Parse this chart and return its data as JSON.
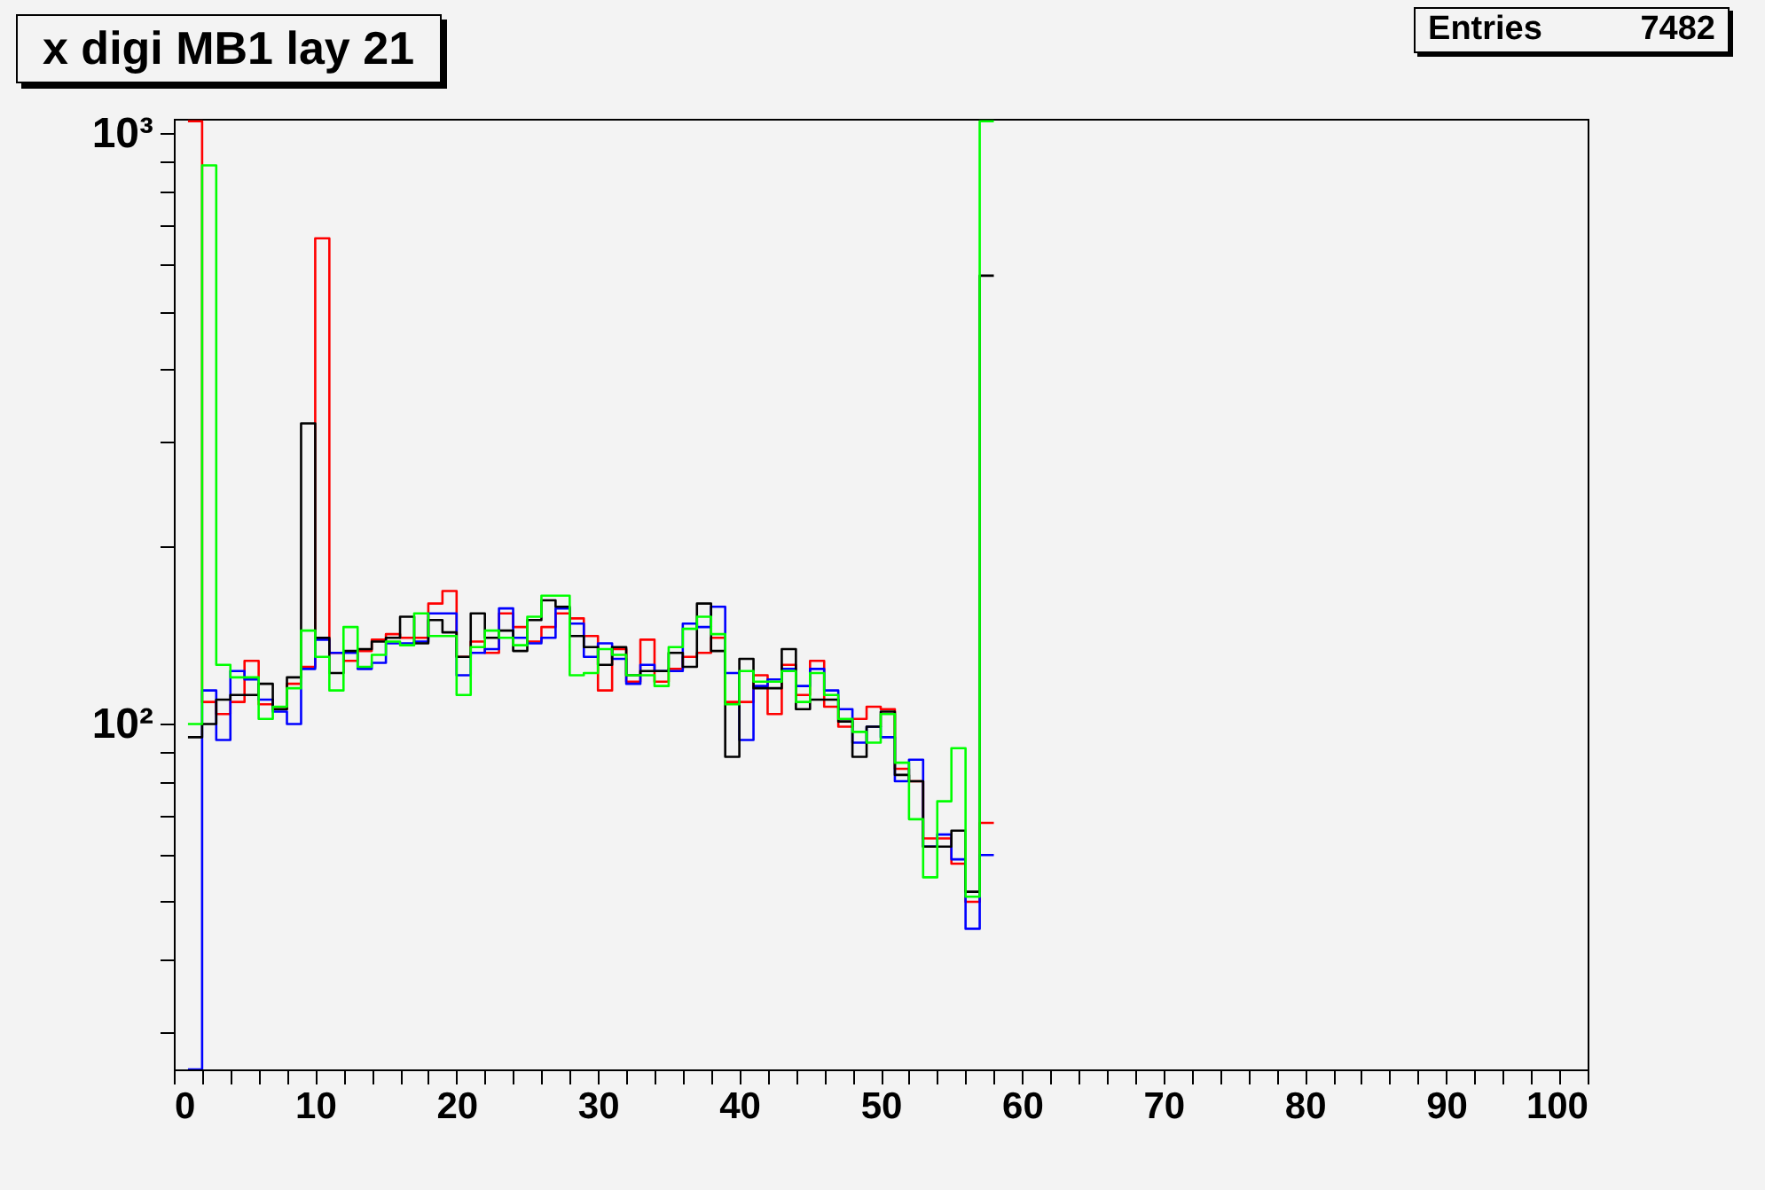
{
  "chart_data": {
    "type": "histogram",
    "title": "x digi MB1 lay 21",
    "annotations": [
      "Entries 7482"
    ],
    "bins": [
      1,
      2,
      3,
      4,
      5,
      6,
      7,
      8,
      9,
      10,
      11,
      12,
      13,
      14,
      15,
      16,
      17,
      18,
      19,
      20,
      21,
      22,
      23,
      24,
      25,
      26,
      27,
      28,
      29,
      30,
      31,
      32,
      33,
      34,
      35,
      36,
      37,
      38,
      39,
      40,
      41,
      42,
      43,
      44,
      45,
      46,
      47,
      48,
      49,
      50,
      51,
      52,
      53,
      54,
      55,
      56,
      57,
      58
    ],
    "series": [
      {
        "color": "#ff0000",
        "values": [
          1050,
          109,
          104,
          109,
          128,
          108,
          106,
          117,
          125,
          665,
          132,
          128,
          133,
          139,
          142,
          140,
          140,
          160,
          168,
          130,
          138,
          132,
          154,
          146,
          138,
          146,
          154,
          151,
          141,
          114,
          134,
          118,
          139,
          118,
          124,
          130,
          132,
          140,
          109,
          109,
          121,
          104,
          126,
          112,
          128,
          107,
          99,
          102,
          107,
          106,
          84,
          80,
          64,
          64,
          58,
          50,
          68
        ]
      },
      {
        "color": "#00ff00",
        "values": [
          100,
          884,
          126,
          120,
          120,
          102,
          107,
          115,
          144,
          130,
          114,
          146,
          125,
          131,
          138,
          136,
          154,
          141,
          141,
          112,
          135,
          144,
          140,
          136,
          152,
          165,
          165,
          121,
          122,
          134,
          131,
          121,
          121,
          116,
          135,
          145,
          152,
          142,
          108,
          123,
          118,
          118,
          123,
          109,
          122,
          112,
          102,
          97,
          93,
          104,
          86,
          69,
          55,
          74,
          91,
          51,
          1050
        ]
      },
      {
        "color": "#0000ff",
        "values": [
          null,
          114,
          94,
          123,
          119,
          110,
          105,
          100,
          124,
          139,
          132,
          132,
          124,
          127,
          137,
          137,
          138,
          154,
          154,
          121,
          132,
          134,
          157,
          140,
          137,
          140,
          157,
          148,
          130,
          137,
          129,
          117,
          126,
          123,
          123,
          148,
          146,
          158,
          122,
          94,
          116,
          119,
          124,
          116,
          124,
          114,
          106,
          93,
          99,
          95,
          80,
          87,
          62,
          65,
          59,
          45,
          60
        ]
      },
      {
        "color": "#000000",
        "values": [
          95,
          100,
          110,
          112,
          112,
          117,
          106,
          120,
          323,
          140,
          122,
          133,
          134,
          138,
          140,
          152,
          137,
          150,
          143,
          130,
          154,
          140,
          144,
          133,
          150,
          162,
          158,
          141,
          135,
          126,
          135,
          121,
          123,
          123,
          132,
          125,
          160,
          133,
          88,
          129,
          115,
          115,
          134,
          106,
          110,
          110,
          101,
          88,
          99,
          105,
          82,
          80,
          62,
          62,
          66,
          52,
          575
        ]
      }
    ],
    "xlim": [
      0,
      100
    ],
    "xticks": [
      0,
      {
        "value": 2,
        "label": null
      },
      {
        "value": 4,
        "label": null
      },
      {
        "value": 6,
        "label": null
      },
      {
        "value": 8,
        "label": null
      },
      10,
      {
        "value": 12,
        "label": null
      },
      {
        "value": 14,
        "label": null
      },
      {
        "value": 16,
        "label": null
      },
      {
        "value": 18,
        "label": null
      },
      20,
      {
        "value": 22,
        "label": null
      },
      {
        "value": 24,
        "label": null
      },
      {
        "value": 26,
        "label": null
      },
      {
        "value": 28,
        "label": null
      },
      30,
      {
        "value": 32,
        "label": null
      },
      {
        "value": 34,
        "label": null
      },
      {
        "value": 36,
        "label": null
      },
      {
        "value": 38,
        "label": null
      },
      40,
      {
        "value": 42,
        "label": null
      },
      {
        "value": 44,
        "label": null
      },
      {
        "value": 46,
        "label": null
      },
      {
        "value": 48,
        "label": null
      },
      50,
      {
        "value": 52,
        "label": null
      },
      {
        "value": 54,
        "label": null
      },
      {
        "value": 56,
        "label": null
      },
      {
        "value": 58,
        "label": null
      },
      60,
      {
        "value": 62,
        "label": null
      },
      {
        "value": 64,
        "label": null
      },
      {
        "value": 66,
        "label": null
      },
      {
        "value": 68,
        "label": null
      },
      70,
      {
        "value": 72,
        "label": null
      },
      {
        "value": 74,
        "label": null
      },
      {
        "value": 76,
        "label": null
      },
      {
        "value": 78,
        "label": null
      },
      80,
      {
        "value": 82,
        "label": null
      },
      {
        "value": 84,
        "label": null
      },
      {
        "value": 86,
        "label": null
      },
      {
        "value": 88,
        "label": null
      },
      90,
      {
        "value": 92,
        "label": null
      },
      {
        "value": 94,
        "label": null
      },
      {
        "value": 96,
        "label": null
      },
      {
        "value": 98,
        "label": null
      },
      100
    ],
    "ylim": [
      26,
      1060
    ],
    "log": true,
    "yticks": [
      {
        "value": 30,
        "label": null
      },
      {
        "value": 40,
        "label": null
      },
      {
        "value": 50,
        "label": null
      },
      {
        "value": 60,
        "label": null
      },
      {
        "value": 70,
        "label": null
      },
      {
        "value": 80,
        "label": null
      },
      {
        "value": 90,
        "label": null
      },
      {
        "value": 100,
        "label": "10²"
      },
      {
        "value": 200,
        "label": null
      },
      {
        "value": 300,
        "label": null
      },
      {
        "value": 400,
        "label": null
      },
      {
        "value": 500,
        "label": null
      },
      {
        "value": 600,
        "label": null
      },
      {
        "value": 700,
        "label": null
      },
      {
        "value": 800,
        "label": null
      },
      {
        "value": 900,
        "label": null
      },
      {
        "value": 1000,
        "label": "10³"
      }
    ]
  }
}
